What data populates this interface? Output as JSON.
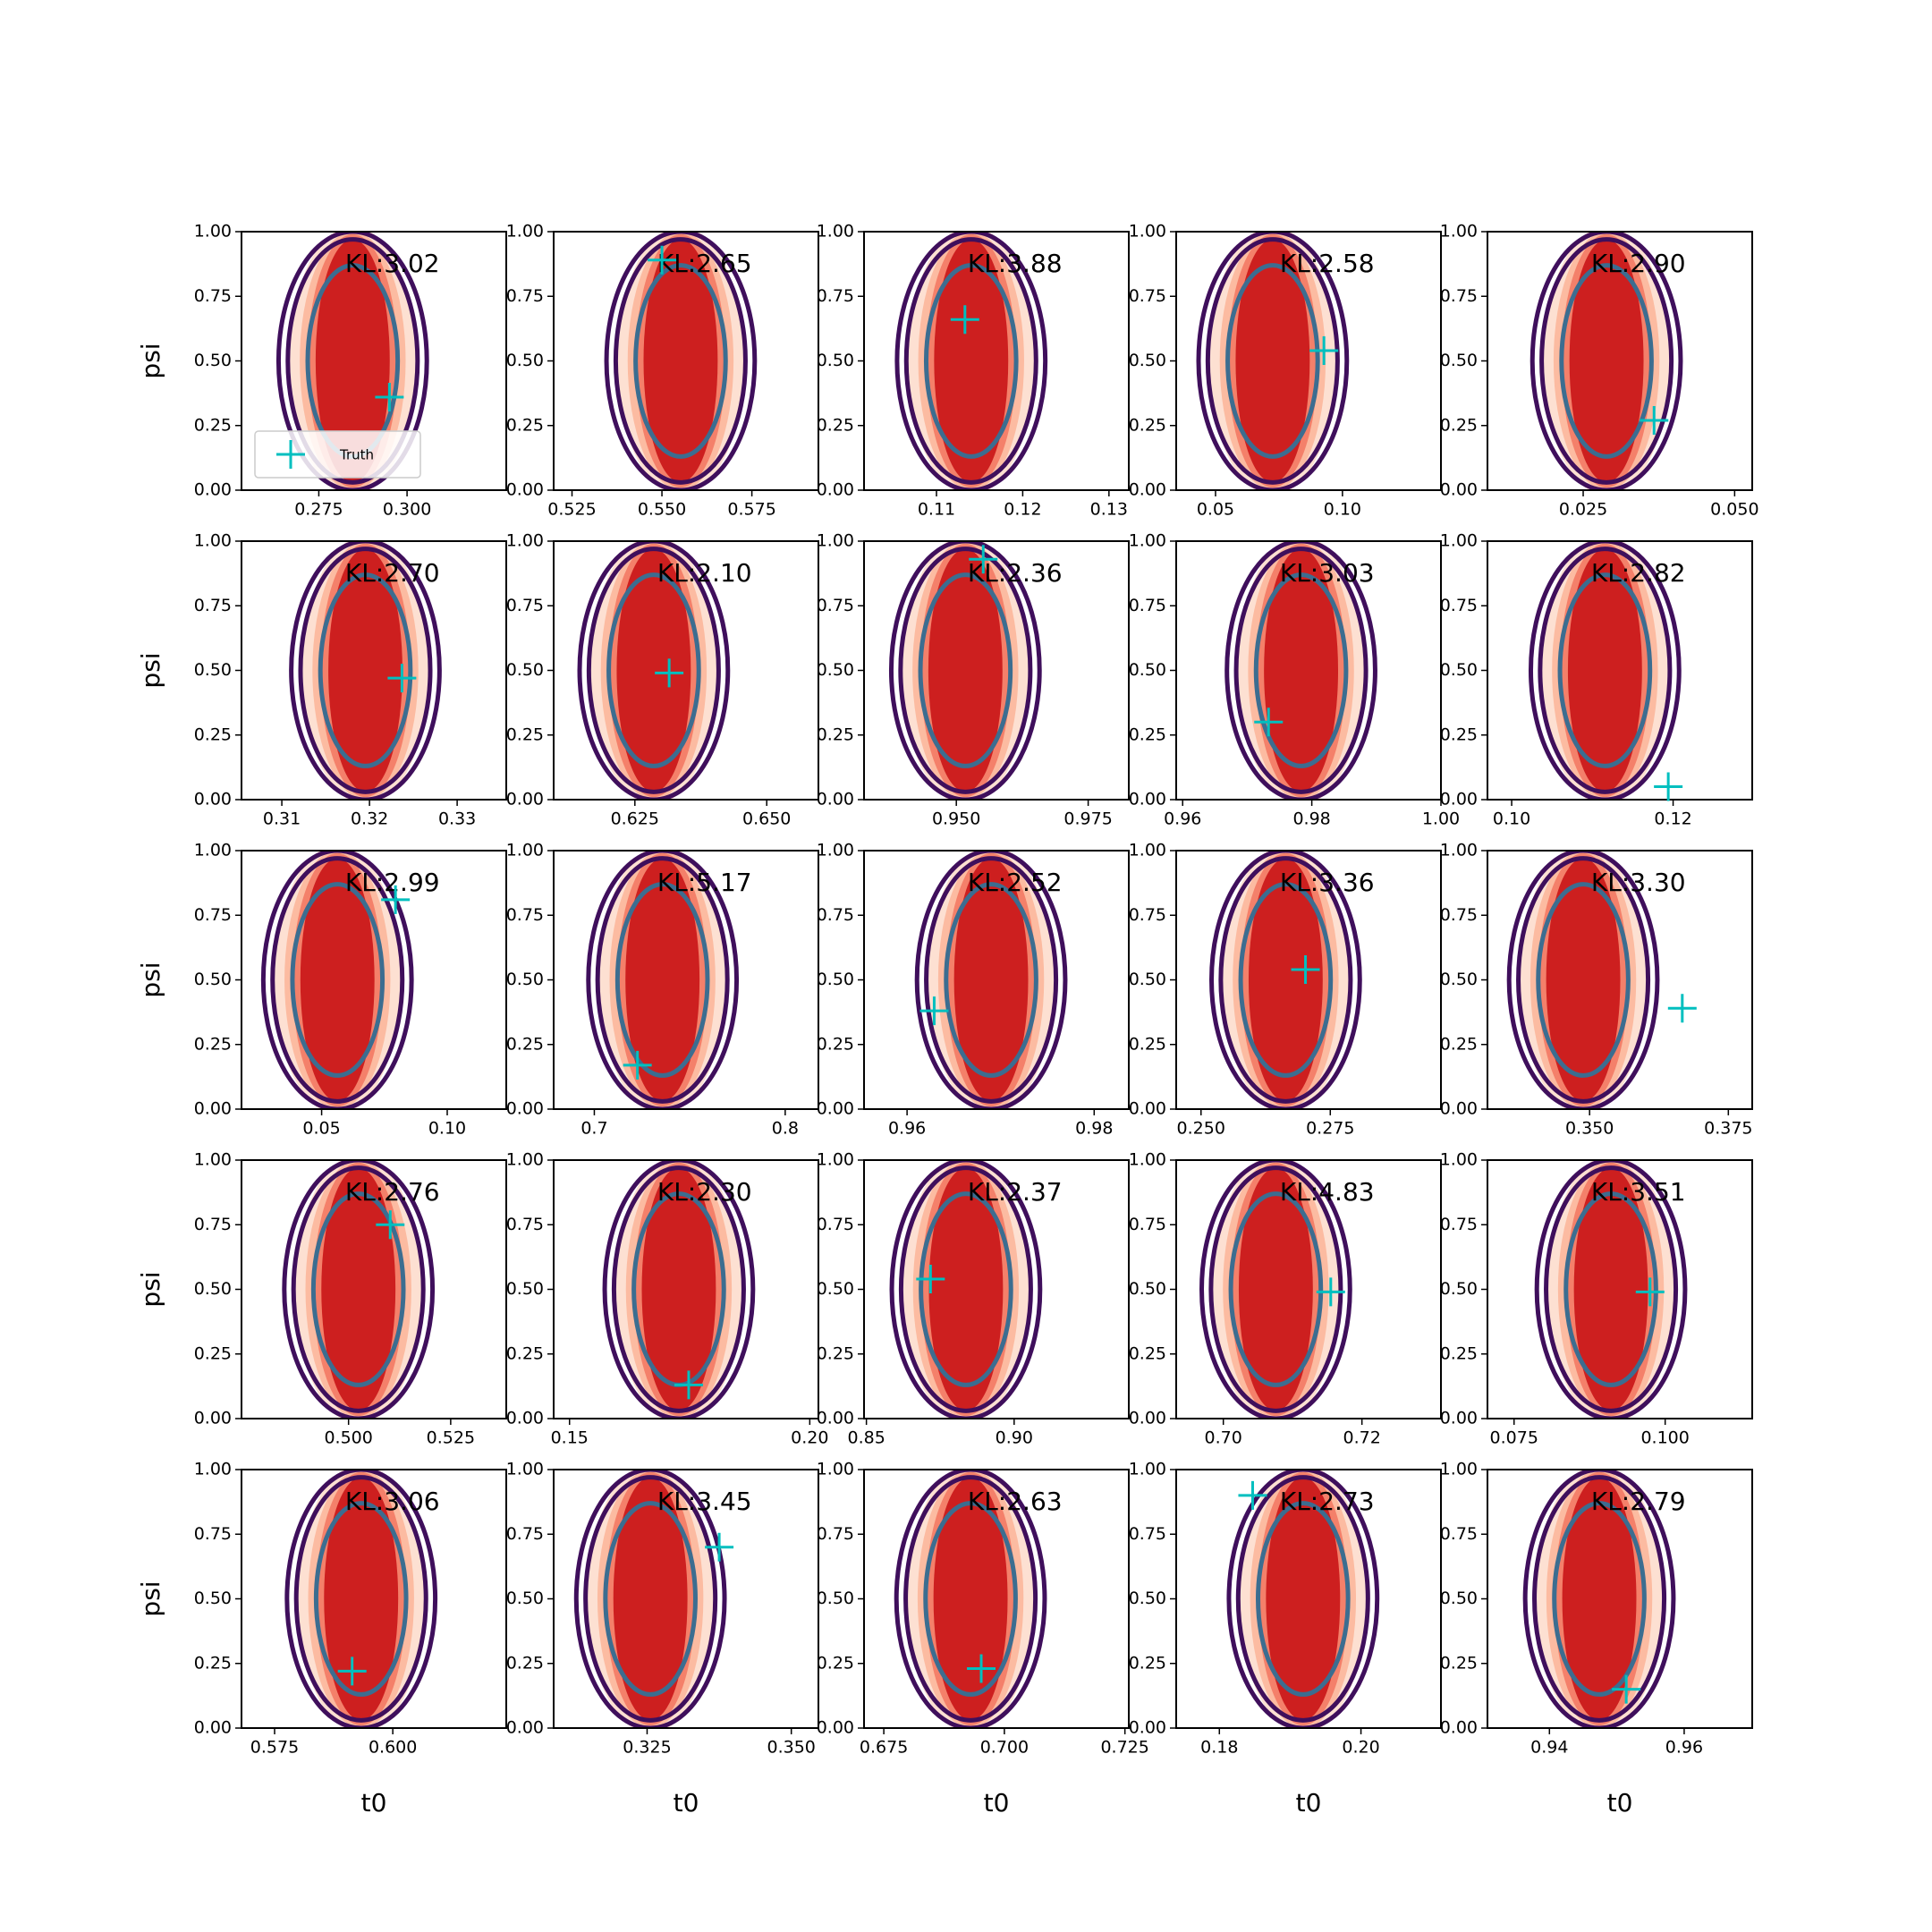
{
  "chart_data": [
    {
      "type": "scatter",
      "annotation": "KL:3.02",
      "xlim": [
        0.2531,
        0.3281
      ],
      "xticks": [
        0.275,
        {
          "value": 0.3,
          "label": "0.300"
        }
      ],
      "ylim": [
        0,
        1
      ],
      "yticks": [
        {
          "value": 0,
          "label": "0.00"
        },
        0.25,
        {
          "value": 0.5,
          "label": "0.50"
        },
        0.75,
        {
          "value": 1,
          "label": "1.00"
        }
      ],
      "ylabel": "psi",
      "legend": "lower left",
      "series": [
        {
          "name": "Truth",
          "color": "#00bfbf",
          "x": [
            0.295
          ],
          "values": [
            0.36
          ]
        }
      ]
    },
    {
      "type": "scatter",
      "annotation": "KL:2.65",
      "xlim": [
        0.5199,
        0.5935
      ],
      "xticks": [
        0.525,
        {
          "value": 0.55,
          "label": "0.550"
        },
        0.575
      ],
      "ylim": [
        0,
        1
      ],
      "yticks": [
        {
          "value": 0,
          "label": "0.00"
        },
        0.25,
        {
          "value": 0.5,
          "label": "0.50"
        },
        0.75,
        {
          "value": 1,
          "label": "1.00"
        }
      ],
      "series": [
        {
          "name": "Truth",
          "color": "#00bfbf",
          "x": [
            0.55
          ],
          "values": [
            0.89
          ]
        }
      ]
    },
    {
      "type": "scatter",
      "annotation": "KL:3.88",
      "xlim": [
        0.1016,
        0.1323
      ],
      "xticks": [
        0.11,
        0.12,
        0.13
      ],
      "ylim": [
        0,
        1
      ],
      "yticks": [
        {
          "value": 0,
          "label": "0.00"
        },
        0.25,
        {
          "value": 0.5,
          "label": "0.50"
        },
        0.75,
        {
          "value": 1,
          "label": "1.00"
        }
      ],
      "series": [
        {
          "name": "Truth",
          "color": "#00bfbf",
          "x": [
            0.1133
          ],
          "values": [
            0.66
          ]
        }
      ]
    },
    {
      "type": "scatter",
      "annotation": "KL:2.58",
      "xlim": [
        0.0345,
        0.1388
      ],
      "xticks": [
        0.05,
        {
          "value": 0.1,
          "label": "0.10"
        }
      ],
      "ylim": [
        0,
        1
      ],
      "yticks": [
        {
          "value": 0,
          "label": "0.00"
        },
        0.25,
        {
          "value": 0.5,
          "label": "0.50"
        },
        0.75,
        {
          "value": 1,
          "label": "1.00"
        }
      ],
      "series": [
        {
          "name": "Truth",
          "color": "#00bfbf",
          "x": [
            0.0927
          ],
          "values": [
            0.54
          ]
        }
      ]
    },
    {
      "type": "scatter",
      "annotation": "KL:2.90",
      "xlim": [
        0.0092,
        0.0529
      ],
      "xticks": [
        0.025,
        {
          "value": 0.05,
          "label": "0.050"
        }
      ],
      "ylim": [
        0,
        1
      ],
      "yticks": [
        {
          "value": 0,
          "label": "0.00"
        },
        0.25,
        {
          "value": 0.5,
          "label": "0.50"
        },
        0.75,
        {
          "value": 1,
          "label": "1.00"
        }
      ],
      "series": [
        {
          "name": "Truth",
          "color": "#00bfbf",
          "x": [
            0.0367
          ],
          "values": [
            0.27
          ]
        }
      ]
    },
    {
      "type": "scatter",
      "annotation": "KL:2.70",
      "xlim": [
        0.3054,
        0.3356
      ],
      "xticks": [
        0.31,
        0.32,
        0.33
      ],
      "ylim": [
        0,
        1
      ],
      "yticks": [
        {
          "value": 0,
          "label": "0.00"
        },
        0.25,
        {
          "value": 0.5,
          "label": "0.50"
        },
        0.75,
        {
          "value": 1,
          "label": "1.00"
        }
      ],
      "ylabel": "psi",
      "series": [
        {
          "name": "Truth",
          "color": "#00bfbf",
          "x": [
            0.3237
          ],
          "values": [
            0.47
          ]
        }
      ]
    },
    {
      "type": "scatter",
      "annotation": "KL:2.10",
      "xlim": [
        0.6096,
        0.6598
      ],
      "xticks": [
        0.625,
        {
          "value": 0.65,
          "label": "0.650"
        }
      ],
      "ylim": [
        0,
        1
      ],
      "yticks": [
        {
          "value": 0,
          "label": "0.00"
        },
        0.25,
        {
          "value": 0.5,
          "label": "0.50"
        },
        0.75,
        {
          "value": 1,
          "label": "1.00"
        }
      ],
      "series": [
        {
          "name": "Truth",
          "color": "#00bfbf",
          "x": [
            0.6315
          ],
          "values": [
            0.49
          ]
        }
      ]
    },
    {
      "type": "scatter",
      "annotation": "KL:2.36",
      "xlim": [
        0.9325,
        0.9827
      ],
      "xticks": [
        {
          "value": 0.95,
          "label": "0.950"
        },
        0.975
      ],
      "ylim": [
        0,
        1
      ],
      "yticks": [
        {
          "value": 0,
          "label": "0.00"
        },
        0.25,
        {
          "value": 0.5,
          "label": "0.50"
        },
        0.75,
        {
          "value": 1,
          "label": "1.00"
        }
      ],
      "series": [
        {
          "name": "Truth",
          "color": "#00bfbf",
          "x": [
            0.9551
          ],
          "values": [
            0.93
          ]
        }
      ]
    },
    {
      "type": "scatter",
      "annotation": "KL:3.03",
      "xlim": [
        0.959,
        1.0
      ],
      "xticks": [
        0.96,
        0.98,
        {
          "value": 1,
          "label": "1.00"
        }
      ],
      "ylim": [
        0,
        1
      ],
      "yticks": [
        {
          "value": 0,
          "label": "0.00"
        },
        0.25,
        {
          "value": 0.5,
          "label": "0.50"
        },
        0.75,
        {
          "value": 1,
          "label": "1.00"
        }
      ],
      "series": [
        {
          "name": "Truth",
          "color": "#00bfbf",
          "x": [
            0.9733
          ],
          "values": [
            0.3
          ]
        }
      ]
    },
    {
      "type": "scatter",
      "annotation": "KL:2.82",
      "xlim": [
        0.097,
        0.1298
      ],
      "xticks": [
        {
          "value": 0.1,
          "label": "0.10"
        },
        0.12
      ],
      "ylim": [
        0,
        1
      ],
      "yticks": [
        {
          "value": 0,
          "label": "0.00"
        },
        0.25,
        {
          "value": 0.5,
          "label": "0.50"
        },
        0.75,
        {
          "value": 1,
          "label": "1.00"
        }
      ],
      "series": [
        {
          "name": "Truth",
          "color": "#00bfbf",
          "x": [
            0.1194
          ],
          "values": [
            0.05
          ]
        }
      ]
    },
    {
      "type": "scatter",
      "annotation": "KL:2.99",
      "xlim": [
        0.0181,
        0.1235
      ],
      "xticks": [
        0.05,
        {
          "value": 0.1,
          "label": "0.10"
        }
      ],
      "ylim": [
        0,
        1
      ],
      "yticks": [
        {
          "value": 0,
          "label": "0.00"
        },
        0.25,
        {
          "value": 0.5,
          "label": "0.50"
        },
        0.75,
        {
          "value": 1,
          "label": "1.00"
        }
      ],
      "ylabel": "psi",
      "series": [
        {
          "name": "Truth",
          "color": "#00bfbf",
          "x": [
            0.0794
          ],
          "values": [
            0.81
          ]
        }
      ]
    },
    {
      "type": "scatter",
      "annotation": "KL:5.17",
      "xlim": [
        0.6787,
        0.8174
      ],
      "xticks": [
        0.7,
        0.8
      ],
      "ylim": [
        0,
        1
      ],
      "yticks": [
        {
          "value": 0,
          "label": "0.00"
        },
        0.25,
        {
          "value": 0.5,
          "label": "0.50"
        },
        0.75,
        {
          "value": 1,
          "label": "1.00"
        }
      ],
      "series": [
        {
          "name": "Truth",
          "color": "#00bfbf",
          "x": [
            0.7226
          ],
          "values": [
            0.17
          ]
        }
      ]
    },
    {
      "type": "scatter",
      "annotation": "KL:2.52",
      "xlim": [
        0.9554,
        0.9837
      ],
      "xticks": [
        0.96,
        0.98
      ],
      "ylim": [
        0,
        1
      ],
      "yticks": [
        {
          "value": 0,
          "label": "0.00"
        },
        0.25,
        {
          "value": 0.5,
          "label": "0.50"
        },
        0.75,
        {
          "value": 1,
          "label": "1.00"
        }
      ],
      "series": [
        {
          "name": "Truth",
          "color": "#00bfbf",
          "x": [
            0.9629
          ],
          "values": [
            0.38
          ]
        }
      ]
    },
    {
      "type": "scatter",
      "annotation": "KL:3.36",
      "xlim": [
        0.2452,
        0.2964
      ],
      "xticks": [
        {
          "value": 0.25,
          "label": "0.250"
        },
        0.275
      ],
      "ylim": [
        0,
        1
      ],
      "yticks": [
        {
          "value": 0,
          "label": "0.00"
        },
        0.25,
        {
          "value": 0.5,
          "label": "0.50"
        },
        0.75,
        {
          "value": 1,
          "label": "1.00"
        }
      ],
      "series": [
        {
          "name": "Truth",
          "color": "#00bfbf",
          "x": [
            0.2702
          ],
          "values": [
            0.54
          ]
        }
      ]
    },
    {
      "type": "scatter",
      "annotation": "KL:3.30",
      "xlim": [
        0.3316,
        0.3793
      ],
      "xticks": [
        {
          "value": 0.35,
          "label": "0.350"
        },
        0.375
      ],
      "ylim": [
        0,
        1
      ],
      "yticks": [
        {
          "value": 0,
          "label": "0.00"
        },
        0.25,
        {
          "value": 0.5,
          "label": "0.50"
        },
        0.75,
        {
          "value": 1,
          "label": "1.00"
        }
      ],
      "series": [
        {
          "name": "Truth",
          "color": "#00bfbf",
          "x": [
            0.3667
          ],
          "values": [
            0.39
          ]
        }
      ]
    },
    {
      "type": "scatter",
      "annotation": "KL:2.76",
      "xlim": [
        0.4738,
        0.5386
      ],
      "xticks": [
        {
          "value": 0.5,
          "label": "0.500"
        },
        0.525
      ],
      "ylim": [
        0,
        1
      ],
      "yticks": [
        {
          "value": 0,
          "label": "0.00"
        },
        0.25,
        {
          "value": 0.5,
          "label": "0.50"
        },
        0.75,
        {
          "value": 1,
          "label": "1.00"
        }
      ],
      "ylabel": "psi",
      "series": [
        {
          "name": "Truth",
          "color": "#00bfbf",
          "x": [
            0.5102
          ],
          "values": [
            0.75
          ]
        }
      ]
    },
    {
      "type": "scatter",
      "annotation": "KL:2.30",
      "xlim": [
        0.1467,
        0.2018
      ],
      "xticks": [
        0.15,
        {
          "value": 0.2,
          "label": "0.20"
        }
      ],
      "ylim": [
        0,
        1
      ],
      "yticks": [
        {
          "value": 0,
          "label": "0.00"
        },
        0.25,
        {
          "value": 0.5,
          "label": "0.50"
        },
        0.75,
        {
          "value": 1,
          "label": "1.00"
        }
      ],
      "series": [
        {
          "name": "Truth",
          "color": "#00bfbf",
          "x": [
            0.1748
          ],
          "values": [
            0.13
          ]
        }
      ]
    },
    {
      "type": "scatter",
      "annotation": "KL:2.37",
      "xlim": [
        0.8492,
        0.9388
      ],
      "xticks": [
        0.85,
        {
          "value": 0.9,
          "label": "0.90"
        }
      ],
      "ylim": [
        0,
        1
      ],
      "yticks": [
        {
          "value": 0,
          "label": "0.00"
        },
        0.25,
        {
          "value": 0.5,
          "label": "0.50"
        },
        0.75,
        {
          "value": 1,
          "label": "1.00"
        }
      ],
      "series": [
        {
          "name": "Truth",
          "color": "#00bfbf",
          "x": [
            0.8717
          ],
          "values": [
            0.54
          ]
        }
      ]
    },
    {
      "type": "scatter",
      "annotation": "KL:4.83",
      "xlim": [
        0.6932,
        0.7314
      ],
      "xticks": [
        {
          "value": 0.7,
          "label": "0.70"
        },
        0.72
      ],
      "ylim": [
        0,
        1
      ],
      "yticks": [
        {
          "value": 0,
          "label": "0.00"
        },
        0.25,
        {
          "value": 0.5,
          "label": "0.50"
        },
        0.75,
        {
          "value": 1,
          "label": "1.00"
        }
      ],
      "series": [
        {
          "name": "Truth",
          "color": "#00bfbf",
          "x": [
            0.7155
          ],
          "values": [
            0.49
          ]
        }
      ]
    },
    {
      "type": "scatter",
      "annotation": "KL:3.51",
      "xlim": [
        0.0706,
        0.1144
      ],
      "xticks": [
        0.075,
        {
          "value": 0.1,
          "label": "0.100"
        }
      ],
      "ylim": [
        0,
        1
      ],
      "yticks": [
        {
          "value": 0,
          "label": "0.00"
        },
        0.25,
        {
          "value": 0.5,
          "label": "0.50"
        },
        0.75,
        {
          "value": 1,
          "label": "1.00"
        }
      ],
      "series": [
        {
          "name": "Truth",
          "color": "#00bfbf",
          "x": [
            0.0975
          ],
          "values": [
            0.49
          ]
        }
      ]
    },
    {
      "type": "scatter",
      "annotation": "KL:3.06",
      "xlim": [
        0.568,
        0.624
      ],
      "xticks": [
        0.575,
        {
          "value": 0.6,
          "label": "0.600"
        }
      ],
      "ylim": [
        0,
        1
      ],
      "yticks": [
        {
          "value": 0,
          "label": "0.00"
        },
        0.25,
        {
          "value": 0.5,
          "label": "0.50"
        },
        0.75,
        {
          "value": 1,
          "label": "1.00"
        }
      ],
      "xlabel": "t0",
      "ylabel": "psi",
      "series": [
        {
          "name": "Truth",
          "color": "#00bfbf",
          "x": [
            0.5914
          ],
          "values": [
            0.22
          ]
        }
      ]
    },
    {
      "type": "scatter",
      "annotation": "KL:3.45",
      "xlim": [
        0.3088,
        0.3547
      ],
      "xticks": [
        0.325,
        {
          "value": 0.35,
          "label": "0.350"
        }
      ],
      "ylim": [
        0,
        1
      ],
      "yticks": [
        {
          "value": 0,
          "label": "0.00"
        },
        0.25,
        {
          "value": 0.5,
          "label": "0.50"
        },
        0.75,
        {
          "value": 1,
          "label": "1.00"
        }
      ],
      "xlabel": "t0",
      "series": [
        {
          "name": "Truth",
          "color": "#00bfbf",
          "x": [
            0.3375
          ],
          "values": [
            0.7
          ]
        }
      ]
    },
    {
      "type": "scatter",
      "annotation": "KL:2.63",
      "xlim": [
        0.6709,
        0.7258
      ],
      "xticks": [
        0.675,
        {
          "value": 0.7,
          "label": "0.700"
        },
        0.725
      ],
      "ylim": [
        0,
        1
      ],
      "yticks": [
        {
          "value": 0,
          "label": "0.00"
        },
        0.25,
        {
          "value": 0.5,
          "label": "0.50"
        },
        0.75,
        {
          "value": 1,
          "label": "1.00"
        }
      ],
      "xlabel": "t0",
      "series": [
        {
          "name": "Truth",
          "color": "#00bfbf",
          "x": [
            0.6952
          ],
          "values": [
            0.23
          ]
        }
      ]
    },
    {
      "type": "scatter",
      "annotation": "KL:2.73",
      "xlim": [
        0.1739,
        0.2113
      ],
      "xticks": [
        0.18,
        {
          "value": 0.2,
          "label": "0.20"
        }
      ],
      "ylim": [
        0,
        1
      ],
      "yticks": [
        {
          "value": 0,
          "label": "0.00"
        },
        0.25,
        {
          "value": 0.5,
          "label": "0.50"
        },
        0.75,
        {
          "value": 1,
          "label": "1.00"
        }
      ],
      "xlabel": "t0",
      "series": [
        {
          "name": "Truth",
          "color": "#00bfbf",
          "x": [
            0.1847
          ],
          "values": [
            0.9
          ]
        }
      ]
    },
    {
      "type": "scatter",
      "annotation": "KL:2.79",
      "xlim": [
        0.9308,
        0.9701
      ],
      "xticks": [
        0.94,
        0.96
      ],
      "ylim": [
        0,
        1
      ],
      "yticks": [
        {
          "value": 0,
          "label": "0.00"
        },
        0.25,
        {
          "value": 0.5,
          "label": "0.50"
        },
        0.75,
        {
          "value": 1,
          "label": "1.00"
        }
      ],
      "xlabel": "t0",
      "series": [
        {
          "name": "Truth",
          "color": "#00bfbf",
          "x": [
            0.9514
          ],
          "values": [
            0.15
          ]
        }
      ]
    }
  ]
}
